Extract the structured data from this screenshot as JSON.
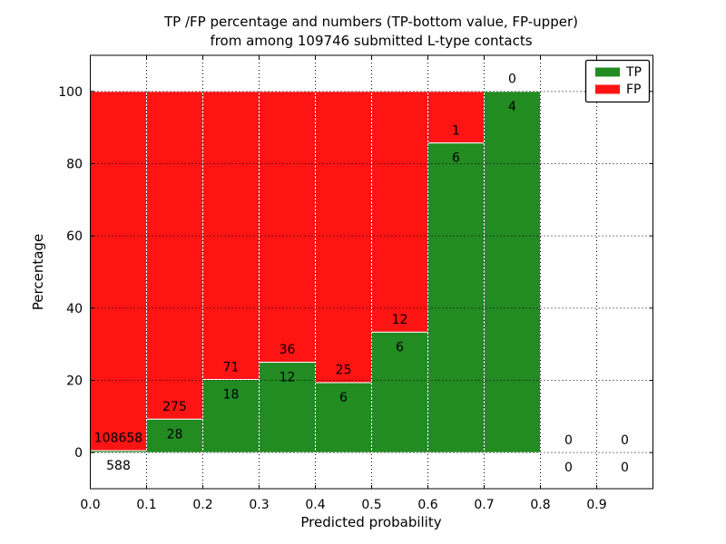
{
  "chart_data": {
    "type": "bar",
    "subtype": "stacked-percentage-histogram",
    "title_lines": [
      "TP /FP percentage and numbers (TP-bottom value, FP-upper)",
      "from among 109746 submitted L-type contacts"
    ],
    "xlabel": "Predicted probability",
    "ylabel": "Percentage",
    "total_contacts": 109746,
    "bin_width": 0.1,
    "bin_starts": [
      0.0,
      0.1,
      0.2,
      0.3,
      0.4,
      0.5,
      0.6,
      0.7,
      0.8,
      0.9
    ],
    "series": [
      {
        "name": "TP",
        "color": "#228b22",
        "counts": [
          588,
          28,
          18,
          12,
          6,
          6,
          6,
          4,
          0,
          0
        ]
      },
      {
        "name": "FP",
        "color": "#ff1414",
        "counts": [
          108658,
          275,
          71,
          36,
          25,
          12,
          1,
          0,
          0,
          0
        ]
      }
    ],
    "tp_percent": [
      0.54,
      9.24,
      20.22,
      25.0,
      19.35,
      33.33,
      85.71,
      100.0,
      0.0,
      0.0
    ],
    "annotation_note": "TP count below bar top, FP count above bar top",
    "xlim": [
      0.0,
      1.0
    ],
    "ylim": [
      -10,
      110
    ],
    "xticks": [
      "0.0",
      "0.1",
      "0.2",
      "0.3",
      "0.4",
      "0.5",
      "0.6",
      "0.7",
      "0.8",
      "0.9"
    ],
    "yticks": [
      0,
      20,
      40,
      60,
      80,
      100
    ],
    "grid": true,
    "grid_style": "dotted",
    "legend": {
      "position": "upper right",
      "labels": [
        "TP",
        "FP"
      ]
    }
  }
}
